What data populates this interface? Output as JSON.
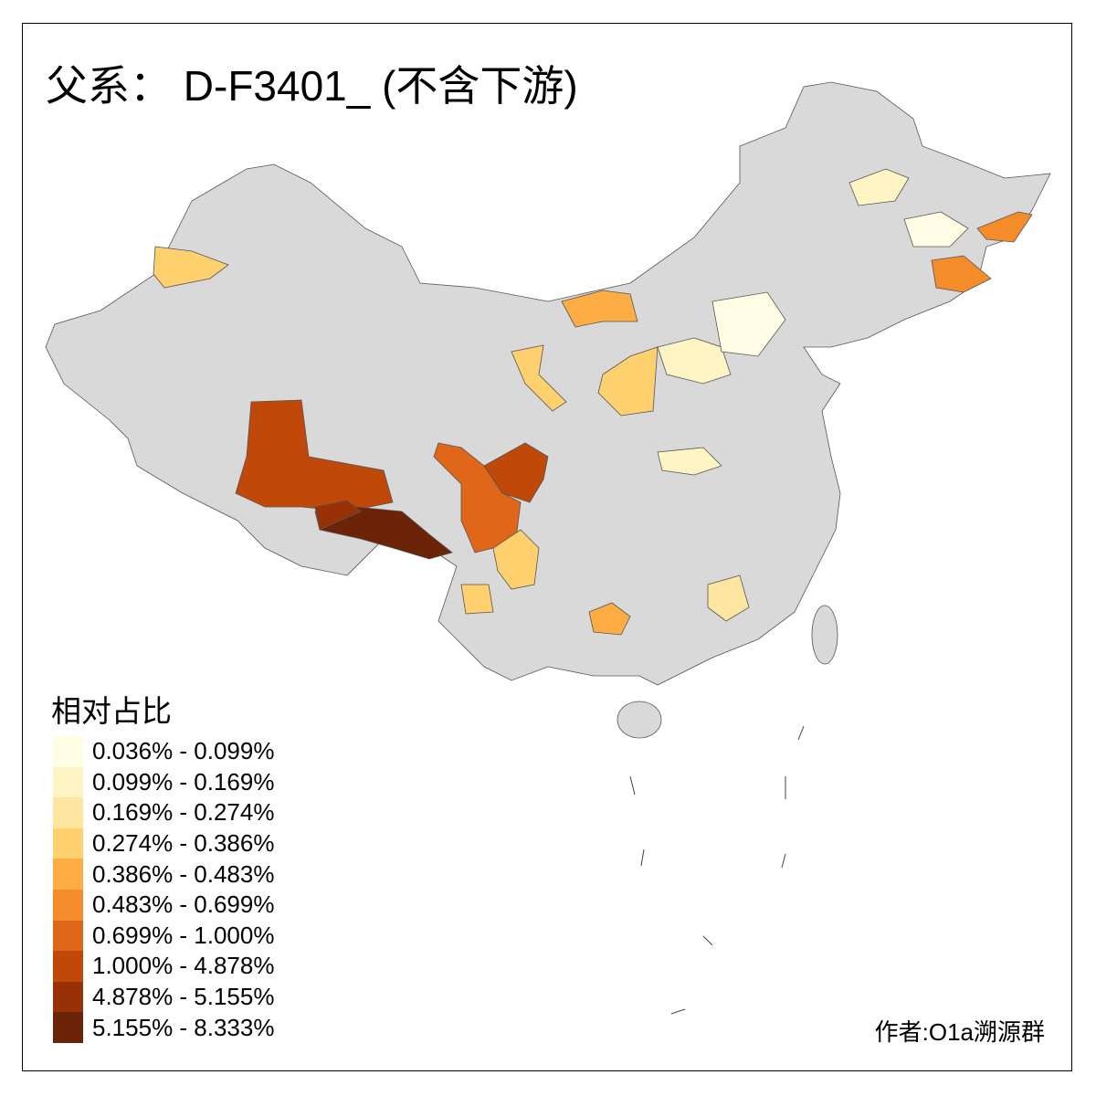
{
  "title": "父系： D-F3401_ (不含下游)",
  "legend": {
    "title": "相对占比",
    "items": [
      {
        "label": "0.036% - 0.099%",
        "color": "#FFFDE4"
      },
      {
        "label": "0.099% - 0.169%",
        "color": "#FFF4C4"
      },
      {
        "label": "0.169% - 0.274%",
        "color": "#FEE6A0"
      },
      {
        "label": "0.274% - 0.386%",
        "color": "#FED06E"
      },
      {
        "label": "0.386% - 0.483%",
        "color": "#FDAD43"
      },
      {
        "label": "0.483% - 0.699%",
        "color": "#F58C2A"
      },
      {
        "label": "0.699% - 1.000%",
        "color": "#E0661A"
      },
      {
        "label": "1.000% - 4.878%",
        "color": "#C0490A"
      },
      {
        "label": "4.878% - 5.155%",
        "color": "#983206"
      },
      {
        "label": "5.155% - 8.333%",
        "color": "#6B2407"
      }
    ]
  },
  "author": "作者:O1a溯源群",
  "colors": {
    "no_data": "#D9D9D9",
    "border": "#555555"
  }
}
